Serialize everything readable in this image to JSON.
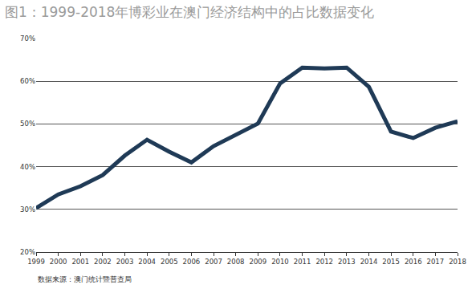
{
  "chart_data": {
    "type": "line",
    "title": "图1：1999-2018年博彩业在澳门经济结构中的占比数据变化",
    "annotations": [
      "数据来源：澳门统计暨普查局"
    ],
    "categories": [
      "1999",
      "2000",
      "2001",
      "2002",
      "2003",
      "2004",
      "2005",
      "2006",
      "2007",
      "2008",
      "2009",
      "2010",
      "2011",
      "2012",
      "2013",
      "2014",
      "2015",
      "2016",
      "2017",
      "2018"
    ],
    "values": [
      30.3,
      33.5,
      35.4,
      38.0,
      42.6,
      46.3,
      43.5,
      41.0,
      44.8,
      47.4,
      50.1,
      59.5,
      63.2,
      63.0,
      63.2,
      58.7,
      48.2,
      46.7,
      49.1,
      50.6
    ],
    "color": "#1f3a56",
    "ylim": [
      20,
      70
    ],
    "yticks": [
      {
        "value": 20,
        "label": "20%"
      },
      {
        "value": 30,
        "label": "30%"
      },
      {
        "value": 40,
        "label": "40%"
      },
      {
        "value": 50,
        "label": "50%"
      },
      {
        "value": 60,
        "label": "60%"
      },
      {
        "value": 70,
        "label": "70%"
      }
    ],
    "grid": true
  }
}
